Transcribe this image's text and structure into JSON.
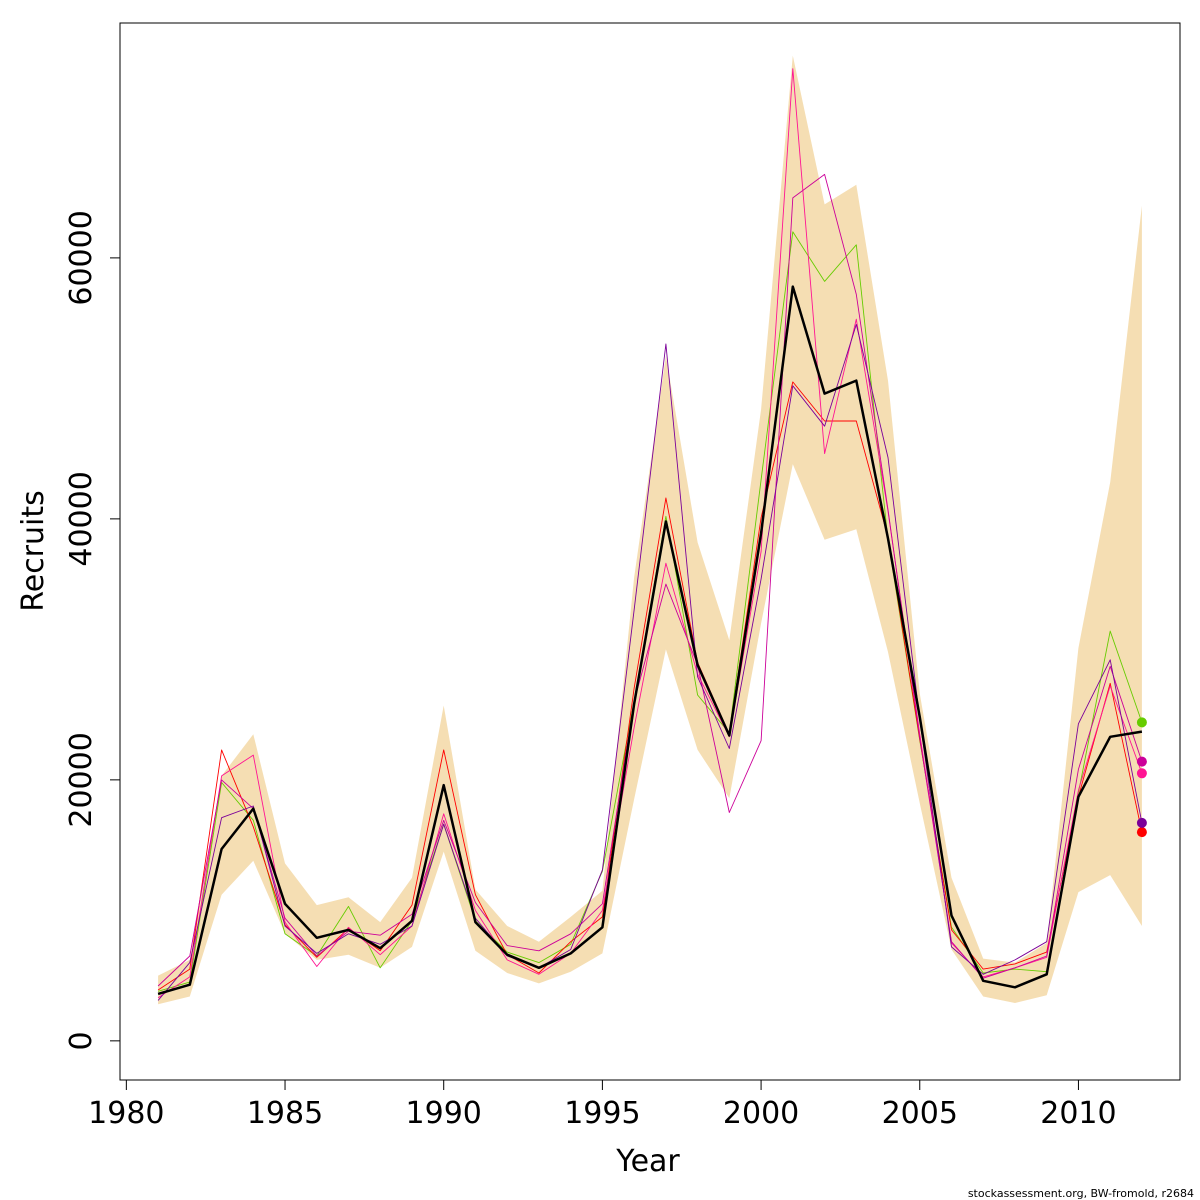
{
  "chart_data": {
    "type": "line",
    "xlabel": "Year",
    "ylabel": "Recruits",
    "xlim": [
      1979.8,
      2013.2
    ],
    "ylim": [
      -3000,
      78000
    ],
    "x_ticks": [
      1980,
      1985,
      1990,
      1995,
      2000,
      2005,
      2010
    ],
    "y_ticks": [
      0,
      20000,
      40000,
      60000
    ],
    "years": [
      1981,
      1982,
      1983,
      1984,
      1985,
      1986,
      1987,
      1988,
      1989,
      1990,
      1991,
      1992,
      1993,
      1994,
      1995,
      1996,
      1997,
      1998,
      1999,
      2000,
      2001,
      2002,
      2003,
      2004,
      2005,
      2006,
      2007,
      2008,
      2009,
      2010,
      2011,
      2012
    ],
    "confidence_band": {
      "color": "#f5deb3",
      "lower": [
        2800,
        3400,
        11200,
        13800,
        8200,
        6200,
        6600,
        5600,
        7200,
        14500,
        6900,
        5200,
        4400,
        5300,
        6700,
        18500,
        30000,
        22300,
        18600,
        32000,
        44200,
        38400,
        39200,
        29800,
        18200,
        7000,
        3400,
        2900,
        3500,
        11400,
        12700,
        8800
      ],
      "upper": [
        5000,
        6200,
        20300,
        23500,
        13600,
        10400,
        11000,
        9100,
        12500,
        25700,
        11600,
        8800,
        7600,
        9500,
        11500,
        35500,
        52500,
        38200,
        30700,
        48400,
        75500,
        64100,
        65600,
        50600,
        26600,
        12500,
        6300,
        6000,
        7500,
        30100,
        42800,
        64000
      ]
    },
    "series": [
      {
        "name": "",
        "color": "#000000",
        "width": 2.5,
        "values": [
          3600,
          4300,
          14700,
          17800,
          10500,
          7900,
          8500,
          7100,
          9200,
          19600,
          9100,
          6600,
          5600,
          6700,
          8700,
          25800,
          39800,
          28800,
          23400,
          38900,
          57800,
          49600,
          50600,
          38500,
          24800,
          9600,
          4600,
          4100,
          5100,
          18700,
          23300,
          23700
        ]
      },
      {
        "name": "",
        "color": "#66cc00",
        "width": 0.9,
        "terminal_point": true,
        "values": [
          3800,
          4500,
          19800,
          16900,
          8200,
          6500,
          10300,
          5600,
          9200,
          16600,
          9200,
          6800,
          6000,
          7400,
          13000,
          26000,
          40200,
          26500,
          23600,
          43000,
          62000,
          58200,
          61000,
          38400,
          23000,
          8700,
          5200,
          5500,
          5300,
          19000,
          31400,
          24400
        ]
      },
      {
        "name": "",
        "color": "#ff0000",
        "width": 0.9,
        "terminal_point": true,
        "values": [
          3900,
          5500,
          22300,
          16400,
          8900,
          6400,
          8600,
          6900,
          10400,
          22300,
          11200,
          6600,
          5200,
          7600,
          9500,
          27000,
          41600,
          29000,
          23500,
          40100,
          50500,
          47500,
          47500,
          38600,
          23100,
          8500,
          5500,
          5900,
          6800,
          18700,
          27400,
          16000
        ]
      },
      {
        "name": "",
        "color": "#ff1493",
        "width": 0.9,
        "terminal_point": true,
        "values": [
          3300,
          4900,
          20300,
          21900,
          9100,
          5700,
          8700,
          6600,
          8800,
          17400,
          10000,
          6200,
          5100,
          6700,
          10000,
          24000,
          36600,
          28100,
          23300,
          37500,
          74500,
          45000,
          55300,
          40600,
          23500,
          7500,
          4900,
          5600,
          6400,
          19200,
          27200,
          20500
        ]
      },
      {
        "name": "",
        "color": "#cc0099",
        "width": 0.9,
        "terminal_point": true,
        "values": [
          4200,
          6500,
          20000,
          17800,
          9400,
          6500,
          8400,
          8100,
          9700,
          16900,
          10600,
          7300,
          6900,
          8200,
          10500,
          26000,
          35000,
          28800,
          17500,
          23000,
          64600,
          66400,
          57200,
          40700,
          23200,
          7600,
          4800,
          5600,
          6500,
          20800,
          28700,
          21400
        ]
      },
      {
        "name": "",
        "color": "#7b0099",
        "width": 0.9,
        "terminal_point": true,
        "values": [
          3100,
          6000,
          17100,
          18000,
          8800,
          6700,
          8200,
          7400,
          8800,
          16600,
          9400,
          6500,
          5600,
          7000,
          13100,
          33000,
          53400,
          27900,
          22400,
          35400,
          50200,
          47100,
          54900,
          44700,
          24600,
          7200,
          5100,
          6200,
          7600,
          24300,
          29200,
          16700
        ]
      }
    ]
  },
  "footnote": "stockassessment.org, BW-fromold, r2684"
}
